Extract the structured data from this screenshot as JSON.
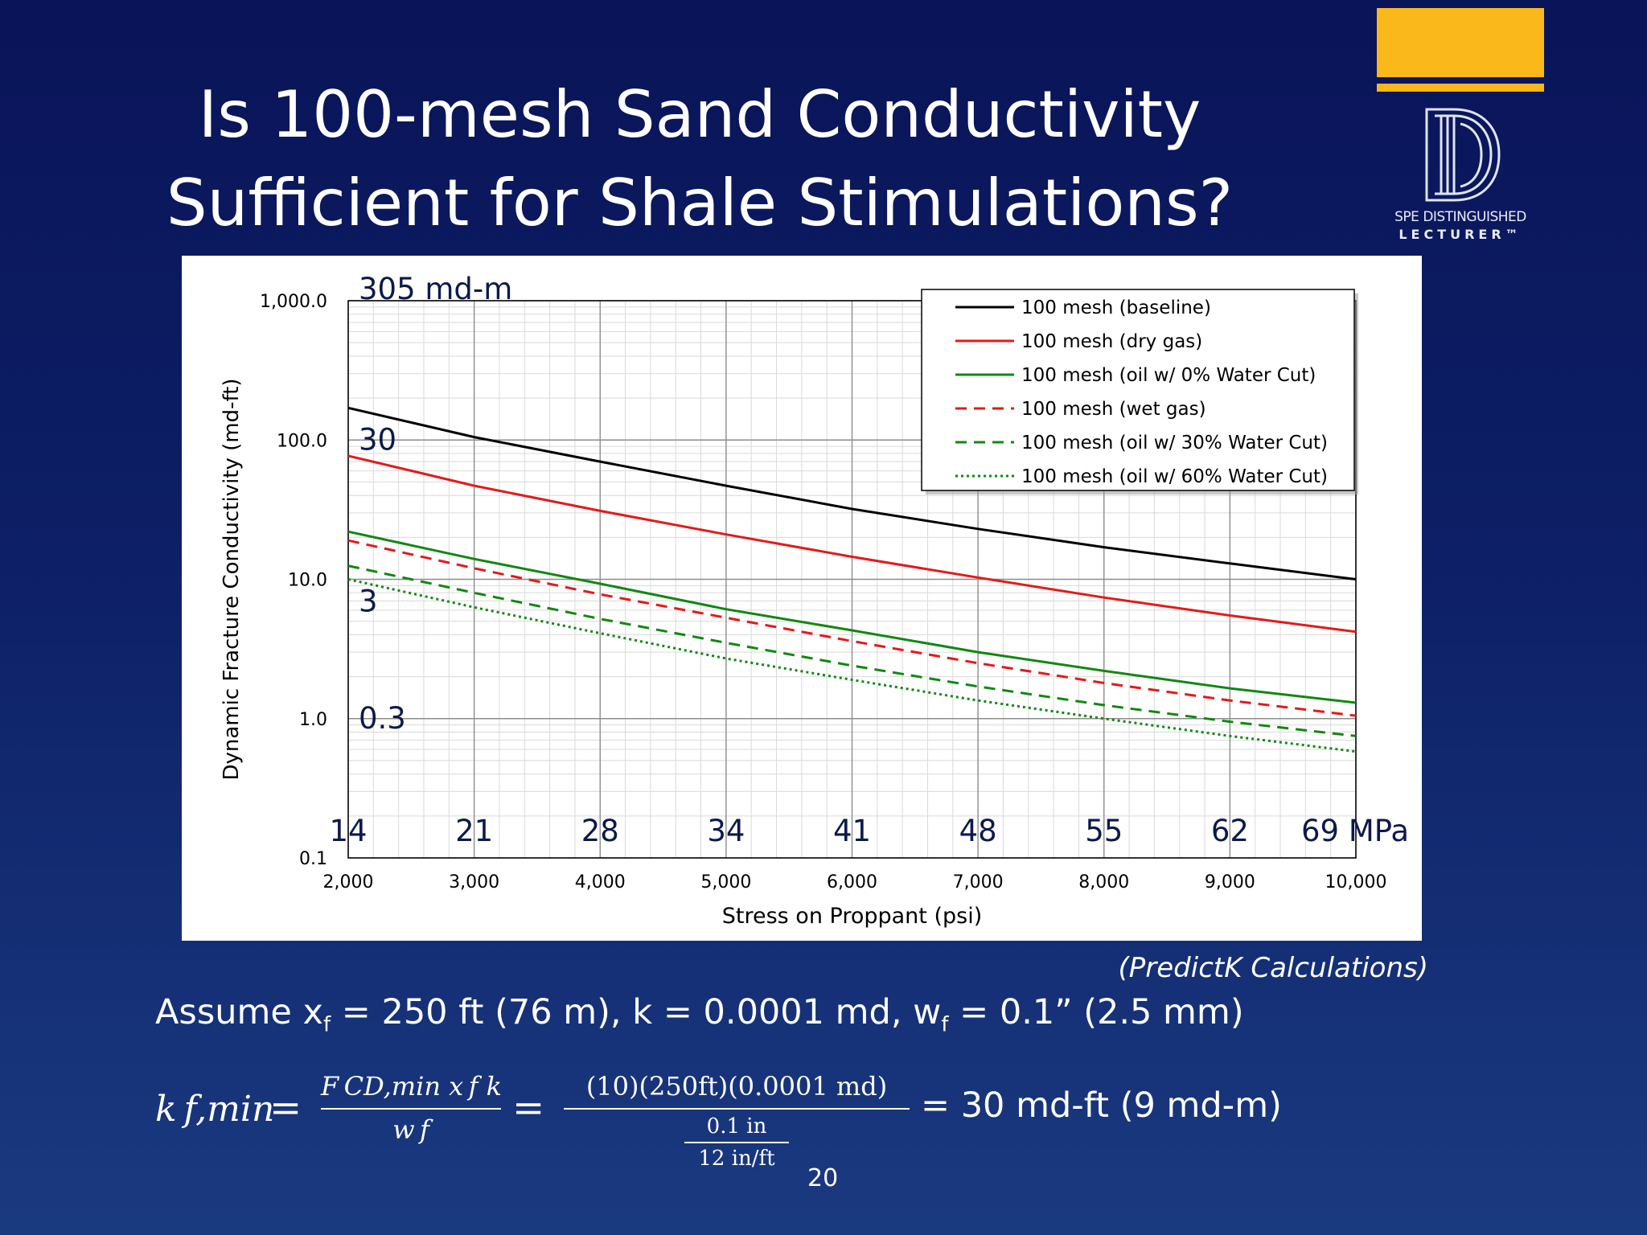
{
  "slide": {
    "title_line1": "Is 100-mesh Sand Conductivity",
    "title_line2": "Sufficient for Shale Stimulations?",
    "page_number": "20",
    "source_note": "(PredictK Calculations)",
    "assume_parts": [
      "Assume x",
      "f",
      " = 250 ft (76 m), k = 0.0001 md, w",
      "f",
      " = 0.1” (2.5 mm)"
    ],
    "formula": {
      "lhs": "k f,min",
      "eq": "=",
      "frac1_num": "F CD,min x f k",
      "frac1_den": "w f",
      "frac2_num": "(10)(250ft)(0.0001 md)",
      "frac2_den_num": "0.1 in",
      "frac2_den_den": "12 in/ft",
      "result": "= 30 md-ft (9 md-m)"
    }
  },
  "logo": {
    "line1": "SPE DISTINGUISHED",
    "line2": "LECTURER™",
    "color": "#fbb81a"
  },
  "chart_data": {
    "type": "line",
    "xlabel": "Stress on Proppant (psi)",
    "ylabel": "Dynamic Fracture Conductivity (md-ft)",
    "xlim": [
      2000,
      10000
    ],
    "ylim": [
      0.1,
      1000
    ],
    "yscale": "log",
    "grid": true,
    "legend_position": "top-right",
    "x_ticks": [
      "2,000",
      "3,000",
      "4,000",
      "5,000",
      "6,000",
      "7,000",
      "8,000",
      "9,000",
      "10,000"
    ],
    "y_ticks": [
      "0.1",
      "1.0",
      "10.0",
      "100.0",
      "1,000.0"
    ],
    "mpa_annotations": [
      {
        "x": 2000,
        "text": "14"
      },
      {
        "x": 3000,
        "text": "21"
      },
      {
        "x": 4000,
        "text": "28"
      },
      {
        "x": 5000,
        "text": "34"
      },
      {
        "x": 6000,
        "text": "41"
      },
      {
        "x": 7000,
        "text": "48"
      },
      {
        "x": 8000,
        "text": "55"
      },
      {
        "x": 9000,
        "text": "62"
      },
      {
        "x": 10000,
        "text": "69 MPa"
      }
    ],
    "md_m_annotations": [
      {
        "y": 1000,
        "text": "305 md-m"
      },
      {
        "y": 100,
        "text": "30"
      },
      {
        "y": 10,
        "text": "3"
      },
      {
        "y": 1,
        "text": "0.3"
      }
    ],
    "x": [
      2000,
      3000,
      4000,
      5000,
      6000,
      7000,
      8000,
      9000,
      10000
    ],
    "series": [
      {
        "name": "100 mesh (baseline)",
        "color": "#000000",
        "dash": "solid",
        "values": [
          170,
          105,
          70,
          47,
          32,
          23,
          17,
          13,
          10
        ]
      },
      {
        "name": "100 mesh (dry gas)",
        "color": "#e41a1a",
        "dash": "solid",
        "values": [
          77,
          47,
          31,
          21,
          14.5,
          10.3,
          7.4,
          5.5,
          4.2
        ]
      },
      {
        "name": "100 mesh (oil w/ 0% Water Cut)",
        "color": "#118811",
        "dash": "solid",
        "values": [
          22,
          14,
          9.3,
          6.1,
          4.3,
          3.0,
          2.2,
          1.65,
          1.3
        ]
      },
      {
        "name": "100 mesh (wet gas)",
        "color": "#e41a1a",
        "dash": "dashed",
        "values": [
          19,
          12,
          7.8,
          5.3,
          3.6,
          2.5,
          1.8,
          1.35,
          1.05
        ]
      },
      {
        "name": "100 mesh (oil w/ 30% Water Cut)",
        "color": "#118811",
        "dash": "dashed",
        "values": [
          12.5,
          8,
          5.2,
          3.5,
          2.4,
          1.7,
          1.25,
          0.95,
          0.75
        ]
      },
      {
        "name": "100 mesh (oil w/ 60% Water Cut)",
        "color": "#118811",
        "dash": "dotted",
        "values": [
          10,
          6.3,
          4.1,
          2.7,
          1.9,
          1.35,
          1.0,
          0.75,
          0.58
        ]
      }
    ]
  }
}
